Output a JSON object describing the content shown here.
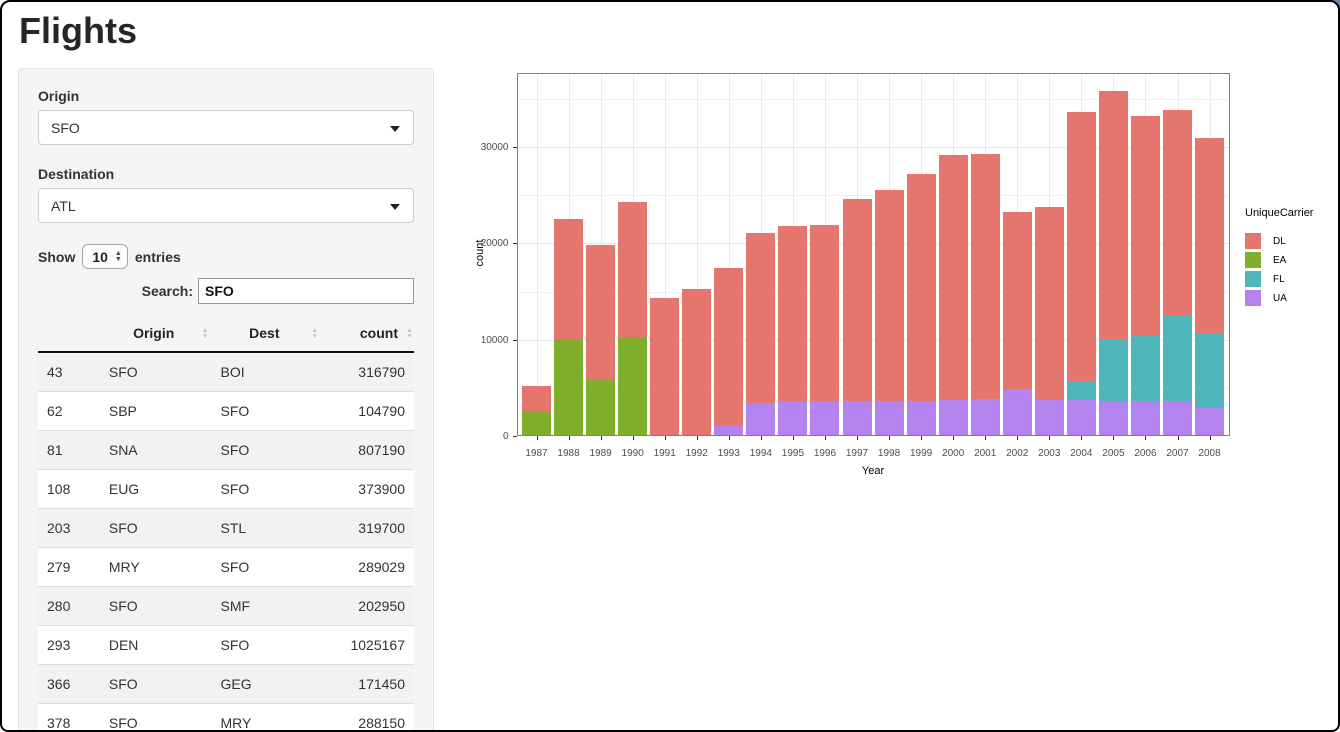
{
  "window": {
    "title": "Flights"
  },
  "sidebar": {
    "origin_label": "Origin",
    "origin_value": "SFO",
    "destination_label": "Destination",
    "destination_value": "ATL",
    "show_label": "Show",
    "page_length": "10",
    "entries_label": "entries",
    "search_label": "Search:",
    "search_value": "SFO",
    "table": {
      "headers": [
        "",
        "Origin",
        "Dest",
        "count"
      ],
      "rows": [
        [
          "43",
          "SFO",
          "BOI",
          "316790"
        ],
        [
          "62",
          "SBP",
          "SFO",
          "104790"
        ],
        [
          "81",
          "SNA",
          "SFO",
          "807190"
        ],
        [
          "108",
          "EUG",
          "SFO",
          "373900"
        ],
        [
          "203",
          "SFO",
          "STL",
          "319700"
        ],
        [
          "279",
          "MRY",
          "SFO",
          "289029"
        ],
        [
          "280",
          "SFO",
          "SMF",
          "202950"
        ],
        [
          "293",
          "DEN",
          "SFO",
          "1025167"
        ],
        [
          "366",
          "SFO",
          "GEG",
          "171450"
        ],
        [
          "378",
          "SFO",
          "MRY",
          "288150"
        ]
      ]
    }
  },
  "chart_data": {
    "type": "bar",
    "stacked": true,
    "title": "",
    "xlabel": "Year",
    "ylabel": "count",
    "legend_title": "UniqueCarrier",
    "legend_position": "right",
    "grid": true,
    "ylim": [
      0,
      37700
    ],
    "yticks": [
      0,
      10000,
      20000,
      30000
    ],
    "yticks_minor": [
      5000,
      15000,
      25000,
      35000
    ],
    "categories": [
      "1987",
      "1988",
      "1989",
      "1990",
      "1991",
      "1992",
      "1993",
      "1994",
      "1995",
      "1996",
      "1997",
      "1998",
      "1999",
      "2000",
      "2001",
      "2002",
      "2003",
      "2004",
      "2005",
      "2006",
      "2007",
      "2008"
    ],
    "stack_order_bottom_to_top": [
      "UA",
      "FL",
      "EA",
      "DL"
    ],
    "series": [
      {
        "name": "DL",
        "color": "#e4766e",
        "values": [
          2600,
          12500,
          14000,
          14000,
          14300,
          15300,
          16400,
          17700,
          18200,
          18300,
          21000,
          21900,
          23600,
          25500,
          25500,
          18400,
          20100,
          27900,
          25700,
          22700,
          21400,
          20300
        ]
      },
      {
        "name": "EA",
        "color": "#7fae2a",
        "values": [
          2600,
          10000,
          5800,
          10300,
          0,
          0,
          0,
          0,
          0,
          0,
          0,
          0,
          0,
          0,
          0,
          0,
          0,
          0,
          0,
          0,
          0,
          0
        ]
      },
      {
        "name": "FL",
        "color": "#4fb6bd",
        "values": [
          0,
          0,
          0,
          0,
          0,
          0,
          0,
          0,
          0,
          0,
          0,
          0,
          0,
          0,
          0,
          0,
          0,
          2000,
          6600,
          6900,
          8900,
          7800
        ]
      },
      {
        "name": "UA",
        "color": "#b583f0",
        "values": [
          0,
          0,
          0,
          0,
          0,
          0,
          1000,
          3400,
          3600,
          3600,
          3600,
          3600,
          3600,
          3700,
          3800,
          4900,
          3700,
          3700,
          3500,
          3600,
          3600,
          2900
        ]
      }
    ],
    "colors": {
      "DL": "#e4766e",
      "EA": "#7fae2a",
      "FL": "#4fb6bd",
      "UA": "#b583f0"
    }
  }
}
